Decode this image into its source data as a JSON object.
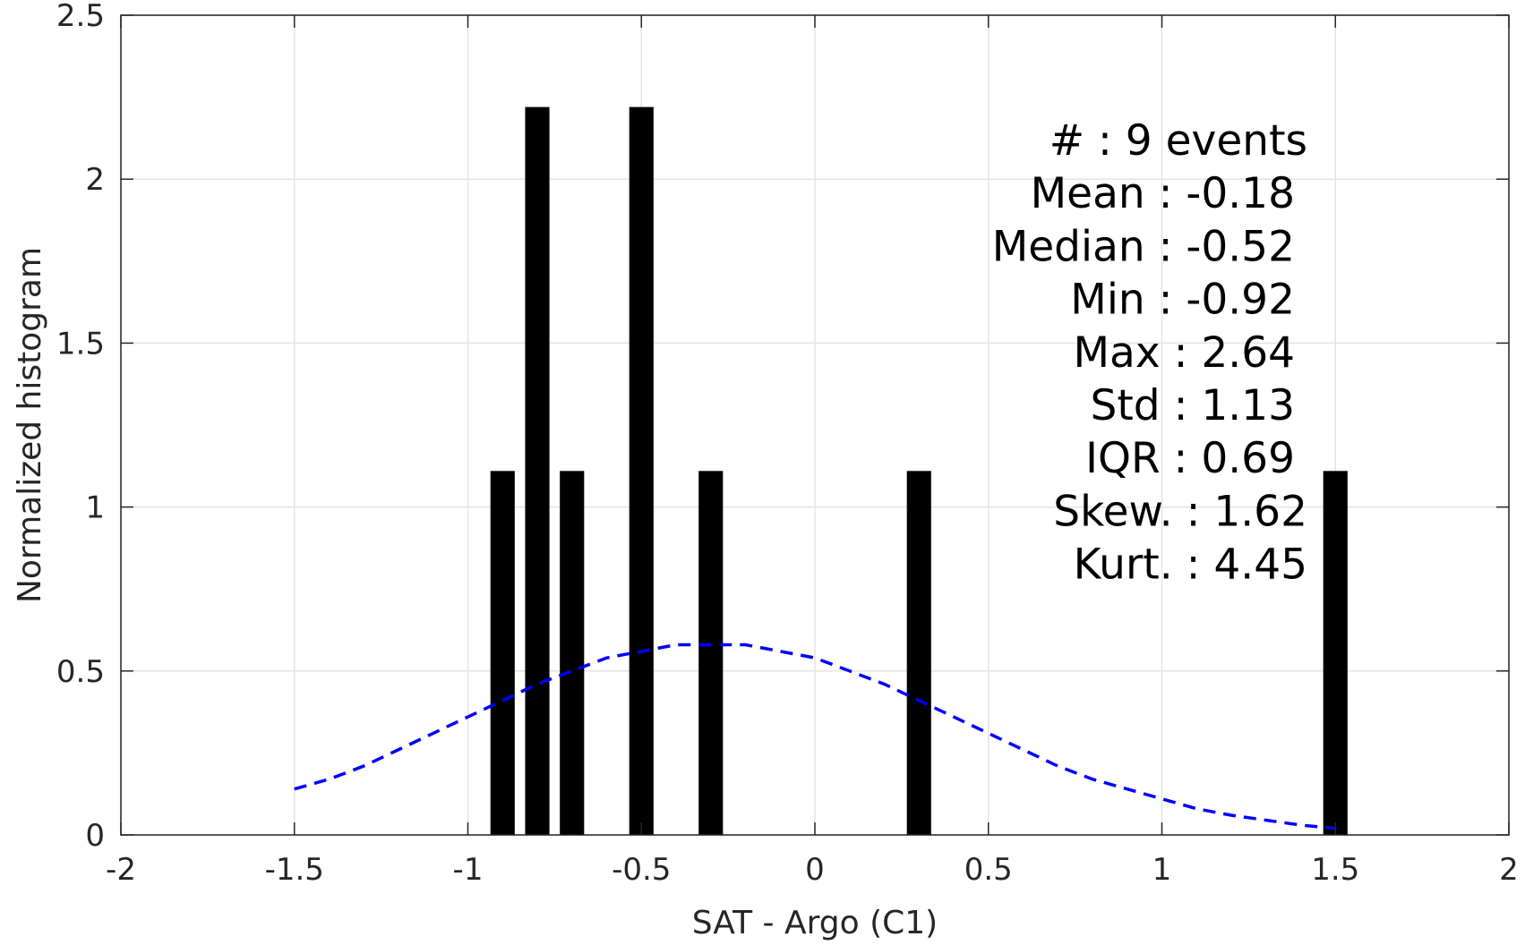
{
  "chart_data": {
    "type": "bar",
    "xlabel": "SAT - Argo (C1)",
    "ylabel": "Normalized histogram",
    "xlim": [
      -2,
      2
    ],
    "ylim": [
      0,
      2.5
    ],
    "x_ticks": [
      -2,
      -1.5,
      -1,
      -0.5,
      0,
      0.5,
      1,
      1.5,
      2
    ],
    "x_tick_labels": [
      "-2",
      "-1.5",
      "-1",
      "-0.5",
      "0",
      "0.5",
      "1",
      "1.5",
      "2"
    ],
    "y_ticks": [
      0,
      0.5,
      1,
      1.5,
      2,
      2.5
    ],
    "y_tick_labels": [
      "0",
      "0.5",
      "1",
      "1.5",
      "2",
      "2.5"
    ],
    "grid": true,
    "bar_color": "#000000",
    "bar_width": 0.07,
    "bars": [
      {
        "x": -0.9,
        "y": 1.11
      },
      {
        "x": -0.8,
        "y": 2.22
      },
      {
        "x": -0.7,
        "y": 1.11
      },
      {
        "x": -0.5,
        "y": 2.22
      },
      {
        "x": -0.3,
        "y": 1.11
      },
      {
        "x": 0.3,
        "y": 1.11
      },
      {
        "x": 1.5,
        "y": 1.11
      }
    ],
    "normal_fit": {
      "style": "dashed",
      "color": "#0000ff",
      "x": [
        -1.5,
        -1.4,
        -1.3,
        -1.2,
        -1.1,
        -1.0,
        -0.9,
        -0.8,
        -0.7,
        -0.6,
        -0.5,
        -0.4,
        -0.3,
        -0.2,
        -0.1,
        0.0,
        0.1,
        0.2,
        0.3,
        0.4,
        0.5,
        0.6,
        0.7,
        0.8,
        0.9,
        1.0,
        1.1,
        1.2,
        1.3,
        1.4,
        1.5
      ],
      "y": [
        0.14,
        0.17,
        0.21,
        0.26,
        0.31,
        0.36,
        0.41,
        0.46,
        0.5,
        0.54,
        0.56,
        0.58,
        0.58,
        0.58,
        0.56,
        0.54,
        0.5,
        0.46,
        0.41,
        0.36,
        0.31,
        0.26,
        0.21,
        0.17,
        0.14,
        0.11,
        0.08,
        0.06,
        0.045,
        0.03,
        0.02
      ]
    },
    "annotations": [
      "#  : 9 events",
      "Mean : -0.18",
      "Median : -0.52",
      "Min : -0.92",
      "Max : 2.64",
      "Std : 1.13",
      "IQR : 0.69",
      "Skew. : 1.62",
      "Kurt. : 4.45"
    ]
  }
}
